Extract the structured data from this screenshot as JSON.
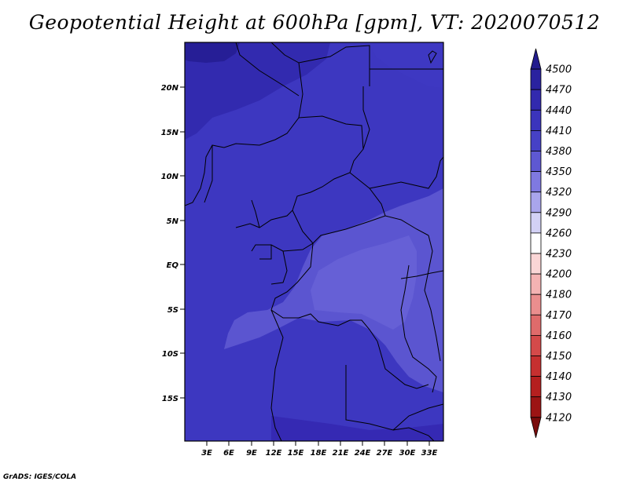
{
  "title": "Geopotential Height at 600hPa [gpm], VT: 2020070512",
  "credit": "GrADS: IGES/COLA",
  "map": {
    "lat_labels": [
      "20N",
      "15N",
      "10N",
      "5N",
      "EQ",
      "5S",
      "10S",
      "15S"
    ],
    "lon_labels": [
      "3E",
      "6E",
      "9E",
      "12E",
      "15E",
      "18E",
      "21E",
      "24E",
      "27E",
      "30E",
      "33E"
    ]
  },
  "colorbar": {
    "levels": [
      "4500",
      "4470",
      "4440",
      "4410",
      "4380",
      "4350",
      "4320",
      "4290",
      "4260",
      "4230",
      "4200",
      "4180",
      "4170",
      "4160",
      "4150",
      "4140",
      "4130",
      "4120"
    ],
    "colors": [
      "#231c8e",
      "#2a229f",
      "#3229ae",
      "#3b34bc",
      "#4641c6",
      "#5e58d2",
      "#7f79e0",
      "#a9a5ec",
      "#d3d1f5",
      "#ffffff",
      "#fad6d6",
      "#f4b3b3",
      "#ea8e8e",
      "#df6b6b",
      "#d44a4a",
      "#c63030",
      "#b51f1f",
      "#9c1414",
      "#7a0c0c"
    ]
  }
}
